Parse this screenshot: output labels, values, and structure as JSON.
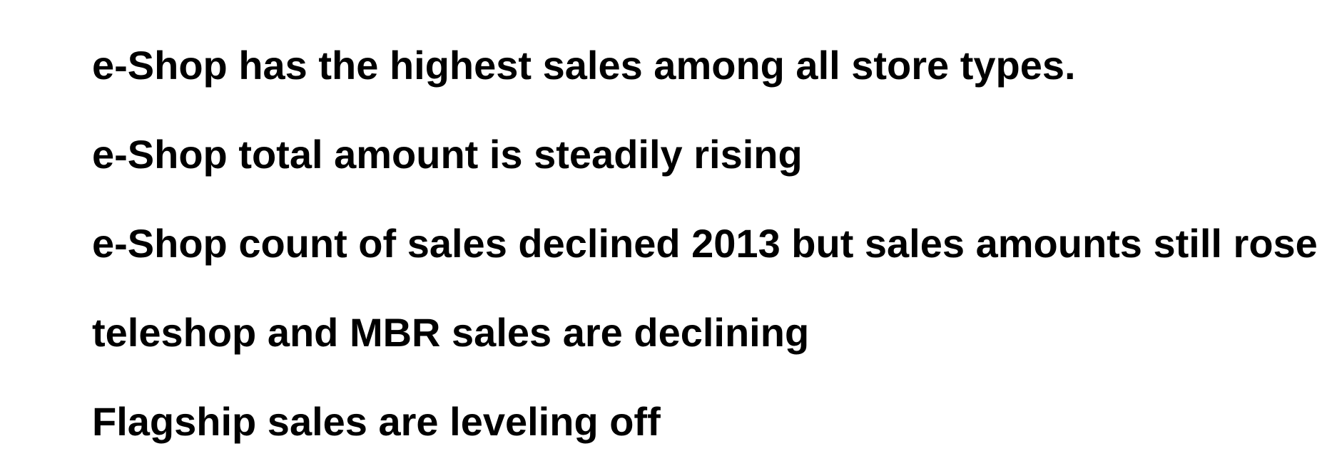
{
  "document": {
    "lines": [
      "e-Shop has the highest sales among all store types.",
      "e-Shop total amount is steadily rising",
      "e-Shop count of sales declined 2013 but sales amounts still rose",
      "teleshop and MBR sales are declining",
      "Flagship sales are leveling off"
    ]
  }
}
